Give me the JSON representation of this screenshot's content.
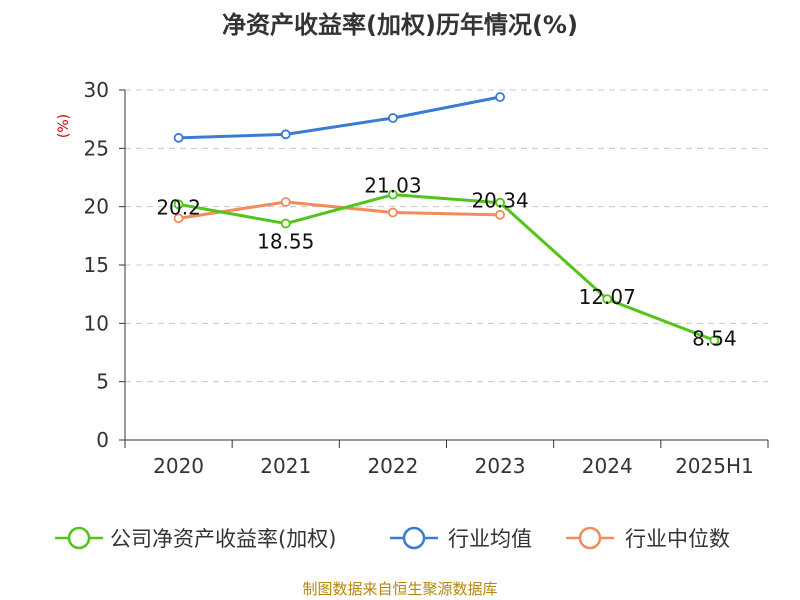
{
  "chart_data": {
    "type": "line",
    "title": "净资产收益率(加权)历年情况(%)",
    "ylabel": "(%)",
    "categories": [
      "2020",
      "2021",
      "2022",
      "2023",
      "2024",
      "2025H1"
    ],
    "ylim": [
      0,
      30
    ],
    "yticks": [
      0,
      5,
      10,
      15,
      20,
      25,
      30
    ],
    "grid": true,
    "legend_position": "bottom",
    "series": [
      {
        "name": "公司净资产收益率(加权)",
        "color": "#52c41a",
        "values": [
          20.2,
          18.55,
          21.03,
          20.34,
          12.07,
          8.54
        ],
        "labels": [
          "20.2",
          "18.55",
          "21.03",
          "20.34",
          "12.07",
          "8.54"
        ]
      },
      {
        "name": "行业均值",
        "color": "#3a7bd5",
        "values": [
          25.9,
          26.2,
          27.6,
          29.4,
          null,
          null
        ]
      },
      {
        "name": "行业中位数",
        "color": "#f28c5b",
        "values": [
          19.0,
          20.4,
          19.5,
          19.3,
          null,
          null
        ]
      }
    ]
  },
  "source": "制图数据来自恒生聚源数据库"
}
